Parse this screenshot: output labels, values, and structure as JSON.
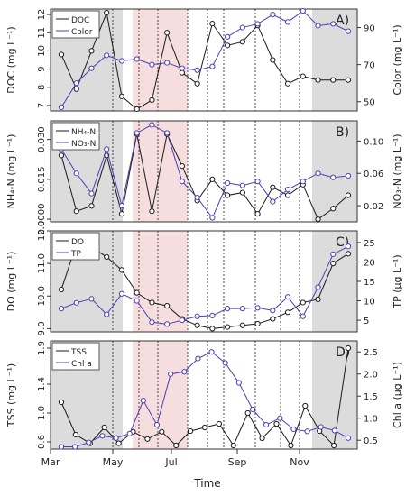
{
  "chart_data": [
    {
      "type": "line",
      "panel_label": "A)",
      "ylabel_left": "DOC  (mg L⁻¹)",
      "ylabel_right": "Color  (mg L⁻¹)",
      "y_left_ticks": [
        "7",
        "8",
        "9",
        "10",
        "11",
        "12"
      ],
      "y_left_range": [
        6.7,
        12.3
      ],
      "y_right_ticks": [
        "50",
        "70",
        "90"
      ],
      "y_right_range": [
        45,
        100
      ],
      "legend": [
        "DOC",
        "Color"
      ],
      "series": [
        {
          "name": "DOC",
          "color": "#1a1a1a",
          "axis": "left",
          "values": [
            9.8,
            7.9,
            10.0,
            12.1,
            7.5,
            6.8,
            7.3,
            11.0,
            8.8,
            8.2,
            11.5,
            10.3,
            10.5,
            11.4,
            9.5,
            8.2,
            8.6,
            8.4,
            8.4,
            8.4
          ]
        },
        {
          "name": "Color",
          "color": "#4b3fb5",
          "axis": "right",
          "values": [
            47,
            60,
            68,
            75,
            72,
            73,
            70,
            71,
            68,
            67,
            69,
            85,
            90,
            92,
            97,
            93,
            99,
            91,
            92,
            88
          ]
        }
      ]
    },
    {
      "type": "line",
      "panel_label": "B)",
      "ylabel_left": "NH₄-N  (mg L⁻¹)",
      "ylabel_right": "NO₃-N  (mg L⁻¹)",
      "y_left_ticks": [
        "0.0000",
        "0.015",
        "0.030"
      ],
      "y_left_range": [
        -0.001,
        0.037
      ],
      "y_right_ticks": [
        "0.02",
        "0.06",
        "0.10"
      ],
      "y_right_range": [
        0.0,
        0.125
      ],
      "legend": [
        "NH₄-N",
        "NO₃-N"
      ],
      "series": [
        {
          "name": "NH₄-N",
          "color": "#1a1a1a",
          "axis": "left",
          "values": [
            0.024,
            0.003,
            0.005,
            0.024,
            0.002,
            0.032,
            0.003,
            0.032,
            0.02,
            0.007,
            0.015,
            0.009,
            0.01,
            0.002,
            0.012,
            0.009,
            0.013,
            0.0,
            0.004,
            0.009
          ]
        },
        {
          "name": "NO₃-N",
          "color": "#4b3fb5",
          "axis": "right",
          "values": [
            0.09,
            0.06,
            0.035,
            0.09,
            0.02,
            0.11,
            0.12,
            0.11,
            0.05,
            0.03,
            0.005,
            0.048,
            0.045,
            0.05,
            0.025,
            0.04,
            0.05,
            0.06,
            0.055,
            0.057
          ]
        }
      ]
    },
    {
      "type": "line",
      "panel_label": "C)",
      "ylabel_left": "DO  (mg L⁻¹)",
      "ylabel_right": "TP  (µg L⁻¹)",
      "y_left_ticks": [
        "9.0",
        "10.0",
        "11.0",
        "12.0"
      ],
      "y_left_range": [
        8.9,
        12.0
      ],
      "y_right_ticks": [
        "5",
        "10",
        "15",
        "20",
        "25"
      ],
      "y_right_range": [
        2,
        28
      ],
      "legend": [
        "DO",
        "TP"
      ],
      "series": [
        {
          "name": "DO",
          "color": "#1a1a1a",
          "axis": "left",
          "values": [
            10.2,
            11.6,
            11.5,
            11.2,
            10.8,
            10.1,
            9.8,
            9.7,
            9.3,
            9.1,
            9.0,
            9.05,
            9.1,
            9.15,
            9.3,
            9.5,
            9.8,
            9.9,
            11.0,
            11.3
          ]
        },
        {
          "name": "TP",
          "color": "#4b3fb5",
          "axis": "right",
          "values": [
            8.0,
            9.5,
            10.5,
            6.5,
            11.8,
            10.0,
            4.5,
            4.0,
            5.0,
            6.0,
            6.2,
            8.0,
            8.0,
            8.2,
            7.5,
            11.0,
            6.0,
            13.5,
            22.0,
            24.0
          ]
        }
      ]
    },
    {
      "type": "line",
      "panel_label": "D)",
      "ylabel_left": "TSS  (mg L⁻¹)",
      "ylabel_right": "Chl a  (µg L⁻¹)",
      "y_left_ticks": [
        "0.6",
        "1.0",
        "1.4",
        "1.9"
      ],
      "y_left_range": [
        0.5,
        2.0
      ],
      "y_right_ticks": [
        "0.5",
        "1.0",
        "1.5",
        "2.0",
        "2.5"
      ],
      "y_right_range": [
        0.3,
        2.75
      ],
      "legend": [
        "TSS",
        "Chl a"
      ],
      "series": [
        {
          "name": "TSS",
          "color": "#1a1a1a",
          "axis": "left",
          "values": [
            1.15,
            0.7,
            0.58,
            0.8,
            0.58,
            0.74,
            0.64,
            0.74,
            0.55,
            0.75,
            0.8,
            0.85,
            0.55,
            1.0,
            0.65,
            0.85,
            0.55,
            1.1,
            0.75,
            0.55,
            1.9
          ]
        },
        {
          "name": "Chl a",
          "color": "#4b3fb5",
          "axis": "right",
          "values": [
            0.35,
            0.35,
            0.45,
            0.6,
            0.55,
            0.65,
            1.4,
            0.85,
            2.0,
            2.05,
            2.35,
            2.5,
            2.25,
            1.8,
            1.2,
            0.85,
            1.0,
            0.75,
            0.7,
            0.8,
            0.72,
            0.55
          ]
        }
      ]
    }
  ],
  "x_axis": {
    "label": "Time",
    "ticks": [
      "Mar",
      "May",
      "Jul",
      "Sep",
      "Nov"
    ]
  },
  "colors": {
    "shade_gray": "#dcdcdc",
    "shade_pink": "#f6dedf",
    "line_dark": "#1a1a1a",
    "line_blue": "#4b3fb5"
  }
}
